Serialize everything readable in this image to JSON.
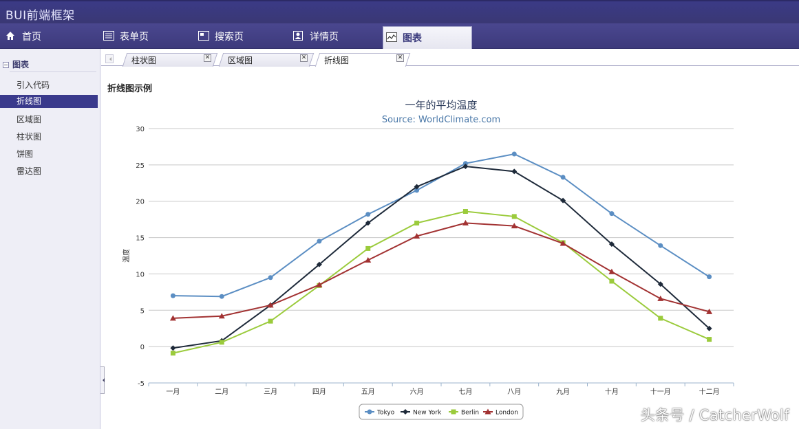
{
  "app": {
    "title": "BUI前端框架"
  },
  "nav": {
    "items": [
      {
        "label": "首页",
        "icon": "home-icon"
      },
      {
        "label": "表单页",
        "icon": "form-icon"
      },
      {
        "label": "搜索页",
        "icon": "search-page-icon"
      },
      {
        "label": "详情页",
        "icon": "user-detail-icon"
      },
      {
        "label": "图表",
        "icon": "chart-icon",
        "active": true
      }
    ]
  },
  "sidebar": {
    "header": "图表",
    "items": [
      {
        "label": "引入代码"
      },
      {
        "label": "折线图",
        "active": true
      },
      {
        "label": "区域图"
      },
      {
        "label": "柱状图"
      },
      {
        "label": "饼图"
      },
      {
        "label": "雷达图"
      }
    ]
  },
  "tabs": [
    {
      "label": "柱状图"
    },
    {
      "label": "区域图"
    },
    {
      "label": "折线图",
      "active": true
    }
  ],
  "content": {
    "title": "折线图示例"
  },
  "watermark": "头条号 / CatcherWolf",
  "chart_data": {
    "type": "line",
    "title": "一年的平均温度",
    "subtitle": "Source: WorldClimate.com",
    "xlabel": "",
    "ylabel": "温度",
    "ylim": [
      -5,
      30
    ],
    "yticks": [
      -5,
      0,
      5,
      10,
      15,
      20,
      25,
      30
    ],
    "grid": true,
    "legend_position": "bottom-center",
    "categories": [
      "一月",
      "二月",
      "三月",
      "四月",
      "五月",
      "六月",
      "七月",
      "八月",
      "九月",
      "十月",
      "十一月",
      "十二月"
    ],
    "series": [
      {
        "name": "Tokyo",
        "color": "#5b8ec3",
        "marker": "circle",
        "values": [
          7.0,
          6.9,
          9.5,
          14.5,
          18.2,
          21.5,
          25.2,
          26.5,
          23.3,
          18.3,
          13.9,
          9.6
        ]
      },
      {
        "name": "New York",
        "color": "#1e2a3a",
        "marker": "diamond",
        "values": [
          -0.2,
          0.8,
          5.7,
          11.3,
          17.0,
          22.0,
          24.8,
          24.1,
          20.1,
          14.1,
          8.6,
          2.5
        ]
      },
      {
        "name": "Berlin",
        "color": "#9bcb3c",
        "marker": "square",
        "values": [
          -0.9,
          0.6,
          3.5,
          8.4,
          13.5,
          17.0,
          18.6,
          17.9,
          14.3,
          9.0,
          3.9,
          1.0
        ]
      },
      {
        "name": "London",
        "color": "#a23232",
        "marker": "triangle",
        "values": [
          3.9,
          4.2,
          5.7,
          8.5,
          11.9,
          15.2,
          17.0,
          16.6,
          14.2,
          10.3,
          6.6,
          4.8
        ]
      }
    ]
  }
}
